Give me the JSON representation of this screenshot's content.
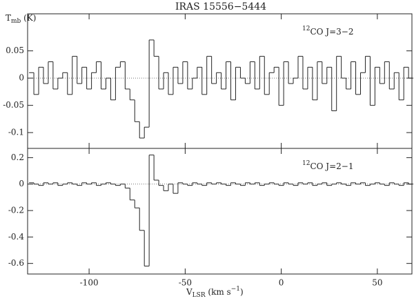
{
  "title": "IRAS 15556−5444",
  "y_label": [
    "T",
    "mb",
    " (K)"
  ],
  "x_label": [
    "V",
    "LSR",
    " (km s",
    "−1",
    ")"
  ],
  "chart_data": [
    {
      "type": "line",
      "step": true,
      "color": "#222222",
      "label_parts": [
        "12",
        "CO J=3−2"
      ],
      "x": [
        -130,
        -127.5,
        -125,
        -122.5,
        -120,
        -117.5,
        -115,
        -112.5,
        -110,
        -107.5,
        -105,
        -102.5,
        -100,
        -97.5,
        -95,
        -92.5,
        -90,
        -87.5,
        -85,
        -82.5,
        -80,
        -77.5,
        -75,
        -72.5,
        -70,
        -67.5,
        -65,
        -62.5,
        -60,
        -57.5,
        -55,
        -52.5,
        -50,
        -47.5,
        -45,
        -42.5,
        -40,
        -37.5,
        -35,
        -32.5,
        -30,
        -27.5,
        -25,
        -22.5,
        -20,
        -17.5,
        -15,
        -12.5,
        -10,
        -7.5,
        -5,
        -2.5,
        0,
        2.5,
        5,
        7.5,
        10,
        12.5,
        15,
        17.5,
        20,
        22.5,
        25,
        27.5,
        30,
        32.5,
        35,
        37.5,
        40,
        42.5,
        45,
        47.5,
        50,
        52.5,
        55,
        57.5,
        60,
        62.5,
        65,
        67.5
      ],
      "values": [
        0.01,
        -0.03,
        0.02,
        -0.01,
        0.03,
        -0.02,
        0.0,
        0.01,
        -0.03,
        0.04,
        -0.01,
        0.02,
        -0.02,
        0.01,
        0.03,
        -0.02,
        0.0,
        -0.04,
        0.02,
        0.03,
        -0.02,
        -0.04,
        -0.08,
        -0.11,
        -0.09,
        0.07,
        0.04,
        -0.02,
        0.01,
        -0.03,
        0.02,
        -0.01,
        0.03,
        -0.02,
        0.0,
        0.02,
        -0.03,
        0.04,
        -0.01,
        0.01,
        -0.02,
        0.03,
        -0.04,
        0.02,
        0.0,
        -0.01,
        0.03,
        -0.02,
        0.04,
        -0.03,
        0.01,
        0.02,
        -0.05,
        0.03,
        -0.01,
        0.0,
        0.04,
        -0.02,
        0.02,
        -0.04,
        0.03,
        -0.01,
        0.02,
        -0.06,
        0.04,
        0.0,
        -0.02,
        0.03,
        -0.03,
        0.01,
        0.04,
        -0.05,
        0.02,
        -0.01,
        0.03,
        -0.02,
        0.01,
        -0.04,
        0.02,
        0.0
      ],
      "xlim": [
        -132,
        68
      ],
      "xticks": [
        -100,
        -50,
        0,
        50
      ],
      "ylim": [
        -0.129,
        0.118
      ],
      "yticks": [
        0.05,
        0,
        -0.05,
        -0.1
      ]
    },
    {
      "type": "line",
      "step": true,
      "color": "#222222",
      "label_parts": [
        "12",
        "CO J=2−1"
      ],
      "x": [
        -130,
        -127.5,
        -125,
        -122.5,
        -120,
        -117.5,
        -115,
        -112.5,
        -110,
        -107.5,
        -105,
        -102.5,
        -100,
        -97.5,
        -95,
        -92.5,
        -90,
        -87.5,
        -85,
        -82.5,
        -80,
        -77.5,
        -75,
        -72.5,
        -70,
        -67.5,
        -65,
        -62.5,
        -60,
        -57.5,
        -55,
        -52.5,
        -50,
        -47.5,
        -45,
        -42.5,
        -40,
        -37.5,
        -35,
        -32.5,
        -30,
        -27.5,
        -25,
        -22.5,
        -20,
        -17.5,
        -15,
        -12.5,
        -10,
        -7.5,
        -5,
        -2.5,
        0,
        2.5,
        5,
        7.5,
        10,
        12.5,
        15,
        17.5,
        20,
        22.5,
        25,
        27.5,
        30,
        32.5,
        35,
        37.5,
        40,
        42.5,
        45,
        47.5,
        50,
        52.5,
        55,
        57.5,
        60,
        62.5,
        65,
        67.5
      ],
      "values": [
        0.01,
        0.0,
        -0.01,
        0.01,
        0.0,
        0.01,
        -0.01,
        0.0,
        0.01,
        0.0,
        -0.01,
        0.01,
        0.0,
        0.01,
        -0.01,
        0.0,
        0.01,
        0.0,
        -0.01,
        0.0,
        -0.03,
        -0.12,
        -0.18,
        -0.35,
        -0.62,
        0.22,
        0.03,
        -0.01,
        -0.05,
        0.0,
        -0.07,
        0.01,
        0.0,
        -0.01,
        0.01,
        0.0,
        -0.01,
        0.01,
        0.0,
        0.01,
        0.0,
        -0.01,
        0.01,
        0.0,
        -0.01,
        0.01,
        0.0,
        0.01,
        -0.01,
        0.0,
        0.01,
        0.0,
        -0.01,
        0.01,
        0.0,
        -0.01,
        0.01,
        0.0,
        0.01,
        -0.01,
        0.0,
        0.01,
        -0.01,
        0.0,
        0.01,
        0.0,
        -0.01,
        0.01,
        0.0,
        0.01,
        -0.01,
        0.0,
        0.01,
        0.0,
        -0.01,
        0.01,
        0.0,
        -0.01,
        0.01,
        0.0
      ],
      "xlim": [
        -132,
        68
      ],
      "xticks": [
        -100,
        -50,
        0,
        50
      ],
      "ylim": [
        -0.68,
        0.27
      ],
      "yticks": [
        0.2,
        0,
        -0.2,
        -0.4,
        -0.6
      ]
    }
  ]
}
